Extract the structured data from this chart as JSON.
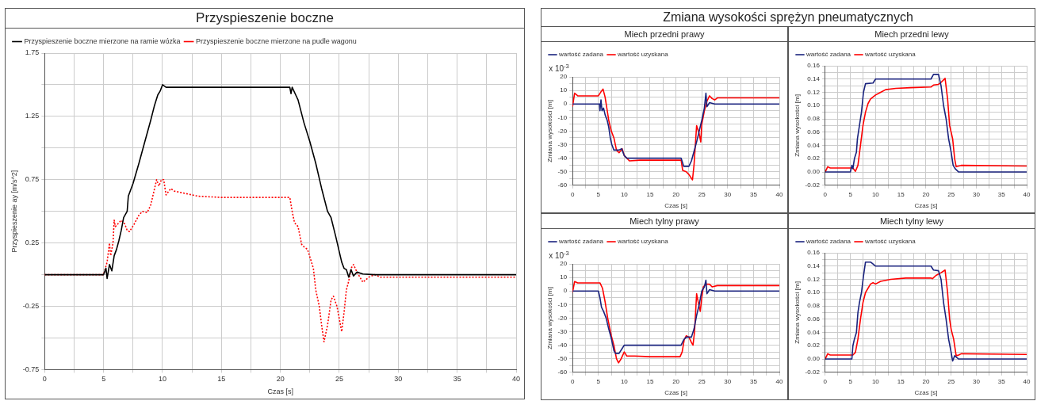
{
  "chart_data": [
    {
      "type": "line",
      "title": "Przyspieszenie boczne",
      "xlabel": "Czas [s]",
      "ylabel": "Przyspieszenie ay [m/s^2]",
      "legend": "top left",
      "grid": true,
      "marker": "none",
      "xlim": [
        0,
        40
      ],
      "xticks": [
        0,
        {
          "value": 2.5,
          "label": null
        },
        5,
        {
          "value": 7.5,
          "label": null
        },
        10,
        {
          "value": 12.5,
          "label": null
        },
        15,
        {
          "value": 17.5,
          "label": null
        },
        20,
        {
          "value": 22.5,
          "label": null
        },
        25,
        {
          "value": 27.5,
          "label": null
        },
        30,
        {
          "value": 32.5,
          "label": null
        },
        35,
        {
          "value": 37.5,
          "label": null
        },
        40
      ],
      "ylim": [
        -0.75,
        1.75
      ],
      "yticks": [
        -0.75,
        {
          "value": -0.5,
          "label": null
        },
        -0.25,
        {
          "value": 0,
          "label": null
        },
        0.25,
        {
          "value": 0.5,
          "label": null
        },
        0.75,
        {
          "value": 1,
          "label": null
        },
        1.25,
        {
          "value": 1.5,
          "label": null
        },
        1.75
      ],
      "series": [
        {
          "name": "Przyspieszenie boczne mierzone na ramie wózka",
          "color": "#000000",
          "line_style": "solid",
          "x": [
            0,
            5,
            5.2,
            5.3,
            5.5,
            5.7,
            5.9,
            6.1,
            6.3,
            6.5,
            6.7,
            7,
            7.1,
            7.5,
            8,
            8.5,
            9,
            9.3,
            9.6,
            9.8,
            10,
            10.3,
            12,
            20.8,
            20.9,
            21,
            21.3,
            21.5,
            22,
            22.5,
            23,
            23.5,
            24,
            24.3,
            24.7,
            25,
            25.2,
            25.4,
            25.6,
            25.8,
            26,
            26.2,
            26.5,
            27,
            28,
            40
          ],
          "values": [
            0,
            0,
            0.05,
            -0.03,
            0.08,
            0.03,
            0.15,
            0.2,
            0.27,
            0.35,
            0.45,
            0.5,
            0.62,
            0.72,
            0.88,
            1.05,
            1.22,
            1.33,
            1.42,
            1.45,
            1.5,
            1.48,
            1.48,
            1.48,
            1.43,
            1.48,
            1.42,
            1.38,
            1.2,
            1.05,
            0.88,
            0.68,
            0.5,
            0.45,
            0.3,
            0.18,
            0.1,
            0.05,
            0.04,
            -0.02,
            0.04,
            -0.01,
            0.02,
            0.005,
            0,
            0
          ]
        },
        {
          "name": "Przyspieszenie boczne mierzone na pudle wagonu",
          "color": "#ff0000",
          "line_style": "dotted",
          "x": [
            0,
            5,
            5.3,
            5.5,
            5.6,
            5.8,
            5.9,
            6,
            6.2,
            6.5,
            6.8,
            7,
            7.2,
            7.6,
            8,
            8.3,
            8.7,
            9,
            9.3,
            9.5,
            9.7,
            9.9,
            10.1,
            10.3,
            10.7,
            11,
            13,
            15,
            20.8,
            21,
            21.2,
            21.5,
            21.8,
            22,
            22.3,
            22.8,
            23,
            23.3,
            23.5,
            23.7,
            24,
            24.3,
            24.5,
            24.8,
            25,
            25.2,
            25.4,
            25.6,
            25.8,
            26,
            26.2,
            26.5,
            27,
            27.5,
            28,
            28.5,
            30,
            40
          ],
          "values": [
            0,
            0,
            0.1,
            0.25,
            0.15,
            0.25,
            0.43,
            0.38,
            0.4,
            0.43,
            0.4,
            0.35,
            0.34,
            0.4,
            0.47,
            0.5,
            0.49,
            0.55,
            0.67,
            0.75,
            0.7,
            0.75,
            0.75,
            0.63,
            0.68,
            0.66,
            0.62,
            0.61,
            0.61,
            0.5,
            0.41,
            0.38,
            0.24,
            0.22,
            0.2,
            0.05,
            -0.12,
            -0.25,
            -0.4,
            -0.53,
            -0.4,
            -0.2,
            -0.17,
            -0.25,
            -0.35,
            -0.45,
            -0.3,
            -0.12,
            -0.05,
            0.05,
            0.08,
            0.02,
            -0.06,
            -0.02,
            0,
            -0.02,
            -0.02,
            -0.02
          ]
        }
      ]
    },
    {
      "type": "other",
      "title": "Zmiana wysokości sprężyn pneumatycznych"
    },
    {
      "type": "line",
      "title": "Miech przedni prawy",
      "xlabel": "Czas [s]",
      "ylabel": "Zmiana wysokości [m]",
      "annotations": [
        "x 10$^{-3}$"
      ],
      "legend": "top left",
      "grid": true,
      "marker": "none",
      "xlim": [
        0,
        40
      ],
      "xticks": [
        0,
        {
          "value": 2.5,
          "label": null
        },
        5,
        {
          "value": 7.5,
          "label": null
        },
        10,
        {
          "value": 12.5,
          "label": null
        },
        15,
        {
          "value": 17.5,
          "label": null
        },
        20,
        {
          "value": 22.5,
          "label": null
        },
        25,
        {
          "value": 27.5,
          "label": null
        },
        30,
        {
          "value": 32.5,
          "label": null
        },
        35,
        {
          "value": 37.5,
          "label": null
        },
        40
      ],
      "ylim": [
        -60,
        20
      ],
      "yticks": [
        -60,
        {
          "value": -55,
          "label": null
        },
        -50,
        {
          "value": -45,
          "label": null
        },
        -40,
        {
          "value": -35,
          "label": null
        },
        -30,
        {
          "value": -25,
          "label": null
        },
        -20,
        {
          "value": -15,
          "label": null
        },
        -10,
        {
          "value": -5,
          "label": null
        },
        0,
        {
          "value": 5,
          "label": null
        },
        10,
        {
          "value": 15,
          "label": null
        },
        20
      ],
      "series": [
        {
          "name": "wartość zadana",
          "color": "#1a237e",
          "x": [
            0,
            5.2,
            5.3,
            5.5,
            5.7,
            6,
            6.3,
            6.7,
            7,
            7.3,
            7.6,
            8,
            9,
            9.5,
            10,
            10.5,
            21,
            21.5,
            22.5,
            23,
            24,
            25,
            25.5,
            25.8,
            26,
            26.5,
            27.5,
            40
          ],
          "values": [
            0,
            0,
            -5,
            3,
            -5,
            -3,
            -8,
            -12,
            -17,
            -25,
            -30,
            -34,
            -34,
            -33,
            -38,
            -40,
            -40,
            -46,
            -46,
            -42,
            -28,
            -12,
            -3,
            8,
            -2,
            1,
            0,
            0
          ]
        },
        {
          "name": "wartość uzyskana",
          "color": "#ff0000",
          "x": [
            0,
            0.4,
            1,
            5,
            5.5,
            5.9,
            6.3,
            7,
            7.5,
            8,
            8.5,
            9,
            9.6,
            10,
            11,
            13,
            21,
            21.3,
            22,
            22.5,
            23.2,
            23.5,
            24,
            24.5,
            24.8,
            25,
            25.5,
            26,
            26.5,
            27,
            27.5,
            28,
            40
          ],
          "values": [
            -2,
            8,
            6,
            6,
            9,
            11,
            5,
            -12,
            -20,
            -25,
            -34,
            -36,
            -33,
            -38,
            -42,
            -41.5,
            -41.5,
            -49,
            -50,
            -52,
            -56,
            -45,
            -16,
            -22,
            -28,
            -15,
            -5,
            2,
            6,
            4,
            3,
            4.5,
            4.5
          ]
        }
      ]
    },
    {
      "type": "line",
      "title": "Miech przedni lewy",
      "xlabel": "Czas [s]",
      "ylabel": "Zmiana wysokości [m]",
      "legend": "top left",
      "grid": true,
      "marker": "none",
      "xlim": [
        0,
        40
      ],
      "xticks": [
        0,
        {
          "value": 2.5,
          "label": null
        },
        5,
        {
          "value": 7.5,
          "label": null
        },
        10,
        {
          "value": 12.5,
          "label": null
        },
        15,
        {
          "value": 17.5,
          "label": null
        },
        20,
        {
          "value": 22.5,
          "label": null
        },
        25,
        {
          "value": 27.5,
          "label": null
        },
        30,
        {
          "value": 32.5,
          "label": null
        },
        35,
        {
          "value": 37.5,
          "label": null
        },
        40
      ],
      "ylim": [
        -0.02,
        0.16
      ],
      "yticks": [
        {
          "value": -0.02,
          "label": "-0.02"
        },
        {
          "value": -0.01,
          "label": null
        },
        {
          "value": 0,
          "label": "0.00"
        },
        {
          "value": 0.01,
          "label": null
        },
        {
          "value": 0.02,
          "label": "0.02"
        },
        {
          "value": 0.03,
          "label": null
        },
        {
          "value": 0.04,
          "label": "0.04"
        },
        {
          "value": 0.05,
          "label": null
        },
        {
          "value": 0.06,
          "label": "0.06"
        },
        {
          "value": 0.07,
          "label": null
        },
        {
          "value": 0.08,
          "label": "0.08"
        },
        {
          "value": 0.09,
          "label": null
        },
        {
          "value": 0.1,
          "label": "0.10"
        },
        {
          "value": 0.11,
          "label": null
        },
        {
          "value": 0.12,
          "label": "0.12"
        },
        {
          "value": 0.13,
          "label": null
        },
        {
          "value": 0.14,
          "label": "0.14"
        },
        {
          "value": 0.15,
          "label": null
        },
        {
          "value": 0.16,
          "label": "0.16"
        }
      ],
      "series": [
        {
          "name": "wartość zadana",
          "color": "#1a237e",
          "x": [
            0,
            5,
            5.3,
            5.5,
            5.8,
            6.2,
            6.4,
            6.8,
            7.2,
            7.6,
            8,
            9.5,
            10,
            21,
            21.5,
            22.5,
            23,
            23.5,
            24,
            24.5,
            25,
            25.4,
            25.8,
            26.5,
            40
          ],
          "values": [
            0,
            0,
            0.01,
            0.005,
            0.02,
            0.03,
            0.05,
            0.07,
            0.09,
            0.12,
            0.133,
            0.134,
            0.14,
            0.14,
            0.147,
            0.147,
            0.13,
            0.1,
            0.08,
            0.05,
            0.03,
            0.01,
            0.005,
            0,
            0
          ]
        },
        {
          "name": "wartość uzyskana",
          "color": "#ff0000",
          "x": [
            0,
            0.5,
            1,
            5.5,
            6,
            6.5,
            7,
            7.5,
            8,
            8.5,
            9,
            10,
            11,
            12,
            14,
            17,
            21,
            21.5,
            22.5,
            23,
            23.8,
            24.3,
            24.7,
            25,
            25.3,
            25.7,
            26,
            26.5,
            27,
            40
          ],
          "values": [
            0,
            0.008,
            0.006,
            0.006,
            0.001,
            0.01,
            0.04,
            0.07,
            0.09,
            0.103,
            0.11,
            0.116,
            0.12,
            0.124,
            0.126,
            0.127,
            0.128,
            0.131,
            0.132,
            0.135,
            0.141,
            0.11,
            0.07,
            0.06,
            0.05,
            0.02,
            0.008,
            0.009,
            0.01,
            0.009
          ]
        }
      ]
    },
    {
      "type": "line",
      "title": "Miech tylny prawy",
      "xlabel": "Czas [s]",
      "ylabel": "Zmiana wysokości [m]",
      "annotations": [
        "x 10$^{-3}$"
      ],
      "legend": "top left",
      "grid": true,
      "marker": "none",
      "xlim": [
        0,
        40
      ],
      "xticks": [
        0,
        {
          "value": 2.5,
          "label": null
        },
        5,
        {
          "value": 7.5,
          "label": null
        },
        10,
        {
          "value": 12.5,
          "label": null
        },
        15,
        {
          "value": 17.5,
          "label": null
        },
        20,
        {
          "value": 22.5,
          "label": null
        },
        25,
        {
          "value": 27.5,
          "label": null
        },
        30,
        {
          "value": 32.5,
          "label": null
        },
        35,
        {
          "value": 37.5,
          "label": null
        },
        40
      ],
      "ylim": [
        -60,
        20
      ],
      "yticks": [
        -60,
        {
          "value": -55,
          "label": null
        },
        -50,
        {
          "value": -45,
          "label": null
        },
        -40,
        {
          "value": -35,
          "label": null
        },
        -30,
        {
          "value": -25,
          "label": null
        },
        -20,
        {
          "value": -15,
          "label": null
        },
        -10,
        {
          "value": -5,
          "label": null
        },
        0,
        {
          "value": 5,
          "label": null
        },
        10,
        {
          "value": 15,
          "label": null
        },
        20
      ],
      "series": [
        {
          "name": "wartość zadana",
          "color": "#1a237e",
          "x": [
            0,
            5,
            5.3,
            5.6,
            6,
            6.5,
            7,
            7.5,
            8,
            8.3,
            9,
            9.5,
            10,
            21,
            21.5,
            22,
            23,
            23.5,
            24,
            24.5,
            25,
            25.5,
            25.8,
            26,
            26.5,
            27.5,
            40
          ],
          "values": [
            0,
            0,
            -5,
            -12,
            -15,
            -20,
            -28,
            -35,
            -44,
            -46,
            -46,
            -43,
            -40,
            -40,
            -36,
            -34,
            -34,
            -28,
            -18,
            -10,
            0,
            3,
            8,
            -2,
            1,
            0,
            0
          ]
        },
        {
          "name": "wartość uzyskana",
          "color": "#ff0000",
          "x": [
            0,
            0.4,
            1,
            5.3,
            5.8,
            6.3,
            6.8,
            7.5,
            8,
            8.5,
            8.9,
            9.4,
            10,
            10.5,
            12,
            15,
            20.8,
            21.2,
            21.6,
            22,
            22.5,
            23,
            23.3,
            23.6,
            24,
            24.3,
            24.7,
            25,
            25.3,
            25.8,
            26.5,
            27,
            28,
            40
          ],
          "values": [
            -1,
            7,
            6,
            6,
            2,
            -8,
            -20,
            -33,
            -40,
            -50,
            -53,
            -50,
            -45,
            -48,
            -48,
            -48.5,
            -48.5,
            -45,
            -36,
            -33,
            -34,
            -38,
            -40,
            -30,
            -2,
            -8,
            -15,
            -5,
            3,
            5,
            5,
            3,
            4,
            4
          ]
        }
      ]
    },
    {
      "type": "line",
      "title": "Miech tylny lewy",
      "xlabel": "Czas [s]",
      "ylabel": "Zmiana wysokości [m]",
      "legend": "top left",
      "grid": true,
      "marker": "none",
      "xlim": [
        0,
        40
      ],
      "xticks": [
        0,
        {
          "value": 2.5,
          "label": null
        },
        5,
        {
          "value": 7.5,
          "label": null
        },
        10,
        {
          "value": 12.5,
          "label": null
        },
        15,
        {
          "value": 17.5,
          "label": null
        },
        20,
        {
          "value": 22.5,
          "label": null
        },
        25,
        {
          "value": 27.5,
          "label": null
        },
        30,
        {
          "value": 32.5,
          "label": null
        },
        35,
        {
          "value": 37.5,
          "label": null
        },
        40
      ],
      "ylim": [
        -0.02,
        0.16
      ],
      "yticks": [
        {
          "value": -0.02,
          "label": "-0.02"
        },
        {
          "value": -0.01,
          "label": null
        },
        {
          "value": 0,
          "label": "0.00"
        },
        {
          "value": 0.01,
          "label": null
        },
        {
          "value": 0.02,
          "label": "0.02"
        },
        {
          "value": 0.03,
          "label": null
        },
        {
          "value": 0.04,
          "label": "0.04"
        },
        {
          "value": 0.05,
          "label": null
        },
        {
          "value": 0.06,
          "label": "0.06"
        },
        {
          "value": 0.07,
          "label": null
        },
        {
          "value": 0.08,
          "label": "0.08"
        },
        {
          "value": 0.09,
          "label": null
        },
        {
          "value": 0.1,
          "label": "0.10"
        },
        {
          "value": 0.11,
          "label": null
        },
        {
          "value": 0.12,
          "label": "0.12"
        },
        {
          "value": 0.13,
          "label": null
        },
        {
          "value": 0.14,
          "label": "0.14"
        },
        {
          "value": 0.15,
          "label": null
        },
        {
          "value": 0.16,
          "label": "0.16"
        }
      ],
      "series": [
        {
          "name": "wartość zadana",
          "color": "#1a237e",
          "x": [
            0,
            5.3,
            5.5,
            5.8,
            6.2,
            6.5,
            6.8,
            7.2,
            7.6,
            8,
            9,
            9.5,
            10,
            21,
            21.5,
            22.5,
            23,
            23.5,
            24,
            24.5,
            25,
            25.3,
            25.7,
            26.5,
            40
          ],
          "values": [
            0,
            0,
            0.02,
            0.03,
            0.04,
            0.07,
            0.085,
            0.1,
            0.125,
            0.146,
            0.146,
            0.143,
            0.14,
            0.14,
            0.134,
            0.133,
            0.12,
            0.085,
            0.06,
            0.03,
            0.01,
            -0.003,
            0.005,
            0,
            0
          ]
        },
        {
          "name": "wartość uzyskana",
          "color": "#ff0000",
          "x": [
            0,
            0.5,
            1,
            5.5,
            6,
            6.5,
            7,
            7.5,
            8,
            9,
            9.5,
            10,
            11,
            13,
            16,
            21,
            21.3,
            22,
            23,
            23.8,
            24.3,
            24.7,
            25,
            25.5,
            26,
            26.5,
            27,
            40
          ],
          "values": [
            0,
            0.008,
            0.006,
            0.006,
            0.01,
            0.03,
            0.06,
            0.085,
            0.1,
            0.113,
            0.115,
            0.113,
            0.117,
            0.12,
            0.122,
            0.122,
            0.121,
            0.126,
            0.13,
            0.134,
            0.1,
            0.06,
            0.045,
            0.03,
            0.005,
            0.006,
            0.008,
            0.007
          ]
        }
      ]
    }
  ]
}
